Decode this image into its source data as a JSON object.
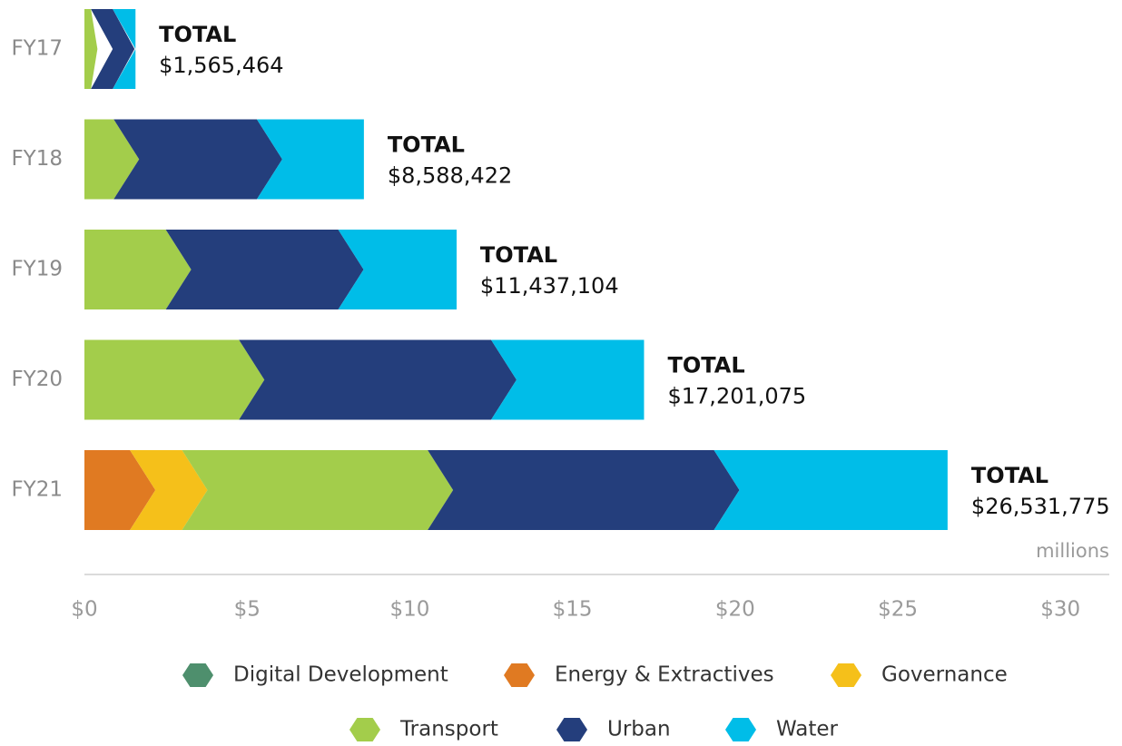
{
  "chart_data": {
    "type": "stacked_bar_horizontal",
    "categories": [
      "FY17",
      "FY18",
      "FY19",
      "FY20",
      "FY21"
    ],
    "series": [
      {
        "name": "Digital Development",
        "color": "#4e8f6d",
        "values": [
          0,
          0,
          0,
          0,
          0
        ]
      },
      {
        "name": "Energy & Extractives",
        "color": "#e07a22",
        "values": [
          0,
          0,
          0,
          0,
          1.4
        ]
      },
      {
        "name": "Governance",
        "color": "#f5c01a",
        "values": [
          0,
          0,
          0,
          0,
          1.6
        ]
      },
      {
        "name": "Transport",
        "color": "#a3cd4b",
        "values": [
          0.2,
          0.9,
          2.5,
          4.75,
          7.55
        ]
      },
      {
        "name": "Urban",
        "color": "#243e7c",
        "values": [
          0.67,
          4.4,
          5.3,
          7.75,
          8.8
        ]
      },
      {
        "name": "Water",
        "color": "#00bde8",
        "values": [
          0.7,
          3.29,
          3.64,
          4.7,
          7.18
        ]
      }
    ],
    "total_heading": "TOTAL",
    "totals": {
      "values": [
        1.565464,
        8.588422,
        11.437104,
        17.201075,
        26.531775
      ],
      "value_labels": [
        "$1,565,464",
        "$8,588,422",
        "$11,437,104",
        "$17,201,075",
        "$26,531,775"
      ]
    },
    "xlabel": "millions",
    "xlim": [
      0,
      31.5
    ],
    "xticks": [
      {
        "value": 0,
        "label": "$0"
      },
      {
        "value": 5,
        "label": "$5"
      },
      {
        "value": 10,
        "label": "$10"
      },
      {
        "value": 15,
        "label": "$15"
      },
      {
        "value": 20,
        "label": "$20"
      },
      {
        "value": 25,
        "label": "$25"
      },
      {
        "value": 30,
        "label": "$30"
      }
    ]
  }
}
